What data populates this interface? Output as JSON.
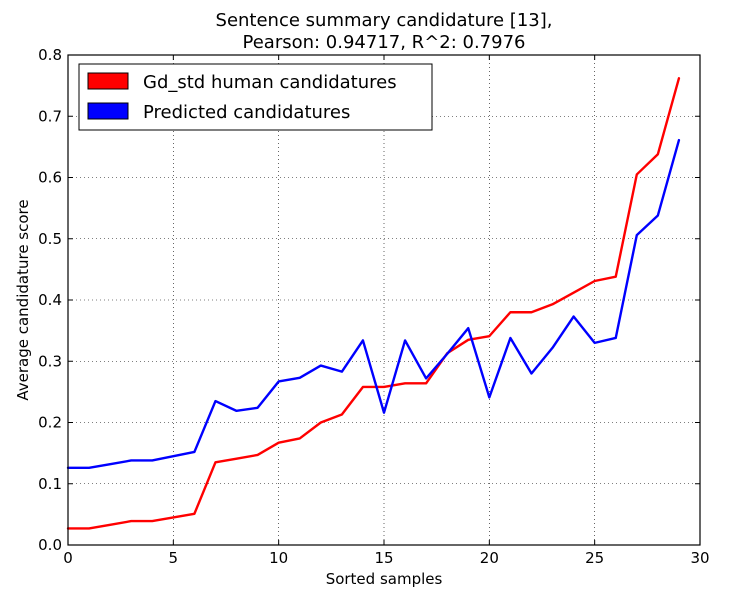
{
  "chart_data": {
    "type": "line",
    "title": "Sentence summary candidature [13],",
    "subtitle": "Pearson: 0.94717, R^2: 0.7976",
    "xlabel": "Sorted samples",
    "ylabel": "Average candidature score",
    "xlim": [
      0,
      30
    ],
    "ylim": [
      0.0,
      0.8
    ],
    "xticks": [
      0,
      5,
      10,
      15,
      20,
      25,
      30
    ],
    "xtick_labels": [
      "0",
      "5",
      "10",
      "15",
      "20",
      "25",
      "30"
    ],
    "yticks": [
      0.0,
      0.1,
      0.2,
      0.3,
      0.4,
      0.5,
      0.6,
      0.7,
      0.8
    ],
    "ytick_labels": [
      "0.0",
      "0.1",
      "0.2",
      "0.3",
      "0.4",
      "0.5",
      "0.6",
      "0.7",
      "0.8"
    ],
    "grid": true,
    "legend_position": "top-left",
    "x": [
      0,
      1,
      2,
      3,
      4,
      5,
      6,
      7,
      8,
      9,
      10,
      11,
      12,
      13,
      14,
      15,
      16,
      17,
      18,
      19,
      20,
      21,
      22,
      23,
      24,
      25,
      26,
      27,
      28,
      29
    ],
    "series": [
      {
        "name": "Gd_std human candidatures",
        "color": "#ff0000",
        "values": [
          0.027,
          0.027,
          0.033,
          0.039,
          0.039,
          0.045,
          0.051,
          0.135,
          0.141,
          0.147,
          0.167,
          0.174,
          0.2,
          0.213,
          0.258,
          0.258,
          0.264,
          0.264,
          0.313,
          0.335,
          0.341,
          0.38,
          0.38,
          0.393,
          0.412,
          0.431,
          0.438,
          0.605,
          0.638,
          0.762
        ]
      },
      {
        "name": "Predicted candidatures",
        "color": "#0000ff",
        "values": [
          0.126,
          0.126,
          0.132,
          0.138,
          0.138,
          0.145,
          0.152,
          0.235,
          0.219,
          0.224,
          0.267,
          0.273,
          0.293,
          0.283,
          0.334,
          0.216,
          0.334,
          0.272,
          0.312,
          0.354,
          0.241,
          0.338,
          0.28,
          0.322,
          0.373,
          0.33,
          0.338,
          0.506,
          0.538,
          0.661
        ]
      }
    ]
  }
}
